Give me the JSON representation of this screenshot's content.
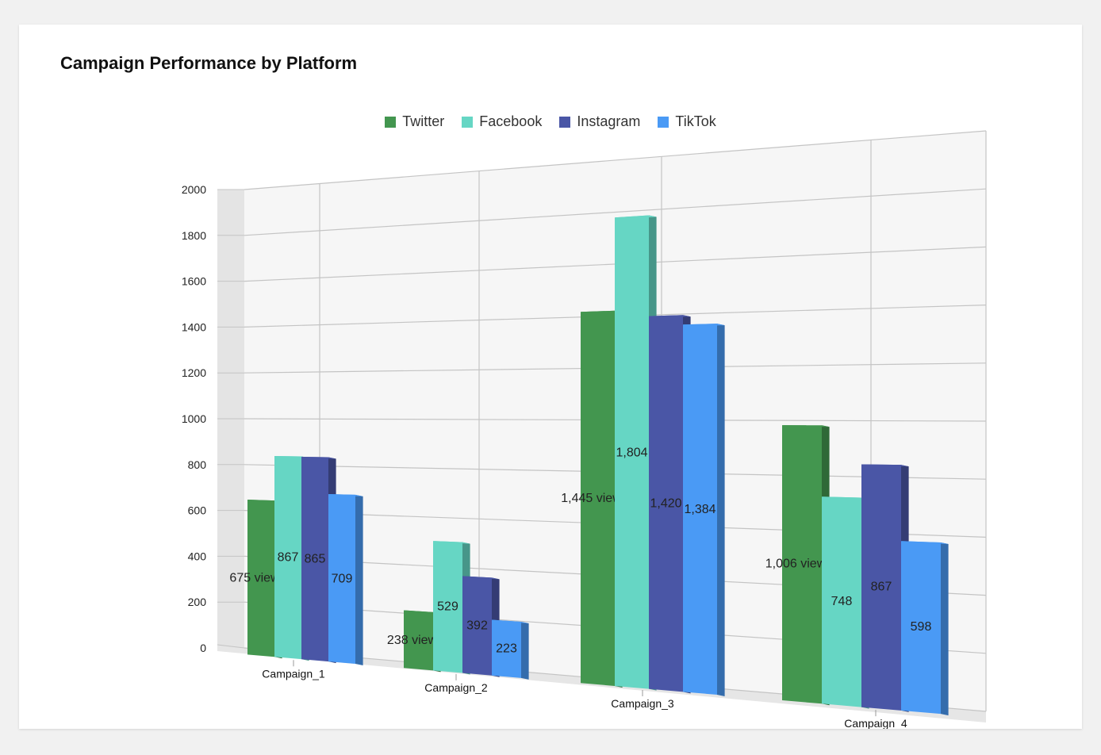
{
  "title": "Campaign Performance by Platform",
  "chart_data": {
    "type": "bar",
    "title": "Campaign Performance by Platform",
    "categories": [
      "Campaign_1",
      "Campaign_2",
      "Campaign_3",
      "Campaign_4"
    ],
    "series": [
      {
        "name": "Twitter",
        "color": "#43964f",
        "values": [
          675,
          238,
          1445,
          1006
        ],
        "labels": [
          "675 views",
          "238 views",
          "1,445 views",
          "1,006 views"
        ]
      },
      {
        "name": "Facebook",
        "color": "#66d6c4",
        "values": [
          867,
          529,
          1804,
          748
        ],
        "labels": [
          "867",
          "529",
          "1,804",
          "748"
        ]
      },
      {
        "name": "Instagram",
        "color": "#4a56a6",
        "values": [
          865,
          392,
          1420,
          867
        ],
        "labels": [
          "865",
          "392",
          "1,420",
          "867"
        ]
      },
      {
        "name": "TikTok",
        "color": "#4a9af5",
        "values": [
          709,
          223,
          1384,
          598
        ],
        "labels": [
          "709",
          "223",
          "1,384",
          "598"
        ]
      }
    ],
    "ylim": [
      0,
      2000
    ],
    "yticks": [
      0,
      200,
      400,
      600,
      800,
      1000,
      1200,
      1400,
      1600,
      1800,
      2000
    ],
    "grid": true,
    "legend_position": "top-center",
    "style": "3d"
  }
}
